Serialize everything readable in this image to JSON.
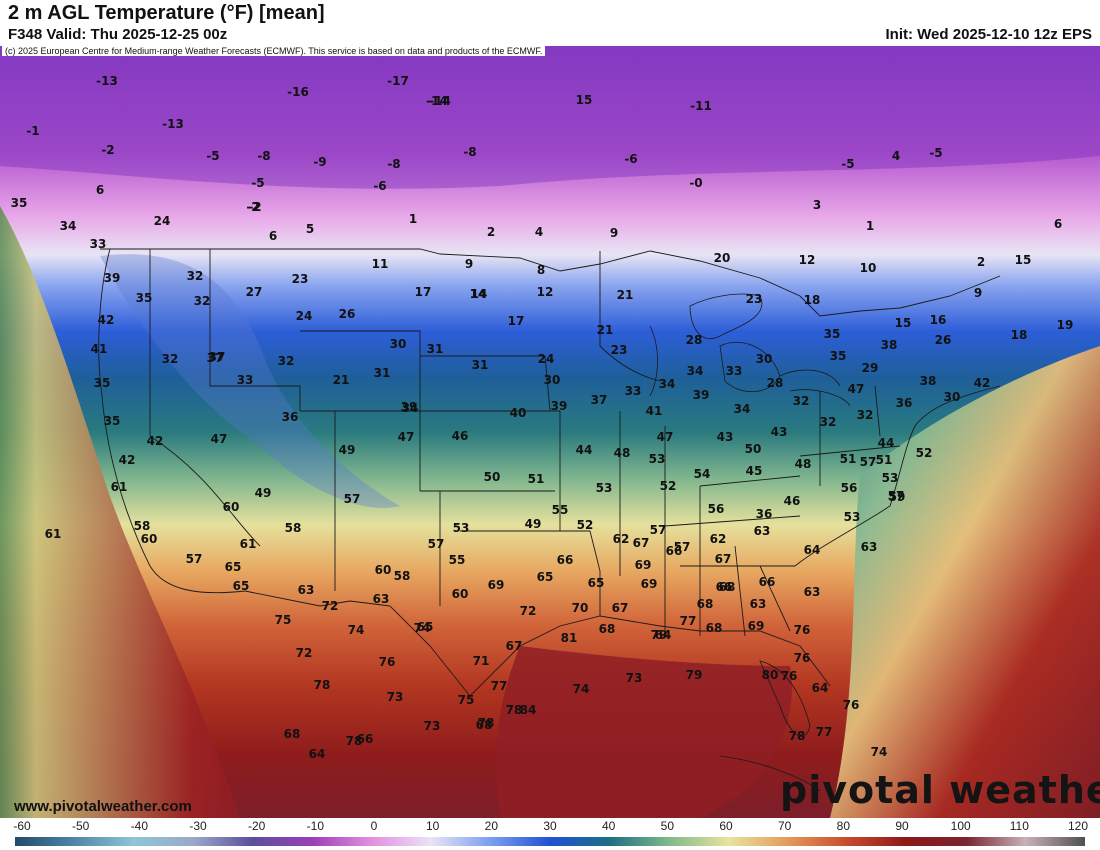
{
  "header": {
    "title": "2 m AGL Temperature (°F) [mean]",
    "valid": "F348 Valid: Thu 2025-12-25 00z",
    "init": "Init: Wed 2025-12-10 12z EPS"
  },
  "copyright": "(c) 2025 European Centre for Medium-range Weather Forecasts (ECMWF). This service is based on data and products of the ECMWF.",
  "watermark": {
    "site": "www.pivotalweather.com",
    "logo": "pivotal weather"
  },
  "colorbar": {
    "ticks": [
      "-60",
      "-50",
      "-40",
      "-30",
      "-20",
      "-10",
      "0",
      "10",
      "20",
      "30",
      "40",
      "50",
      "60",
      "70",
      "80",
      "90",
      "100",
      "110",
      "120"
    ],
    "stops": [
      "#214a6b",
      "#4f86a9",
      "#8ec6d6",
      "#9aa8c8",
      "#5b4f9c",
      "#9b3fb6",
      "#e48fe0",
      "#e9e3f7",
      "#7c9ff0",
      "#1f52d3",
      "#1d6f83",
      "#80b88a",
      "#e8e4a0",
      "#e49a5a",
      "#c84a2e",
      "#8c1818",
      "#7a2430",
      "#c9b1b8",
      "#505050"
    ]
  },
  "map_values": [
    "-13",
    "-17",
    "-16",
    "-14",
    "-14",
    "15",
    "-11",
    "-1",
    "-13",
    "-2",
    "-5",
    "-8",
    "-9",
    "-8",
    "-8",
    "-5",
    "-6",
    "-2",
    "-6",
    "-0",
    "4",
    "-5",
    "6",
    "-5",
    "24",
    "-2",
    "1",
    "2",
    "4",
    "9",
    "5",
    "6",
    "3",
    "1",
    "6",
    "35",
    "34",
    "33",
    "11",
    "9",
    "8",
    "12",
    "14",
    "20",
    "12",
    "10",
    "2",
    "15",
    "39",
    "32",
    "27",
    "23",
    "17",
    "14",
    "21",
    "23",
    "18",
    "9",
    "35",
    "32",
    "24",
    "26",
    "17",
    "21",
    "28",
    "15",
    "16",
    "42",
    "30",
    "31",
    "31",
    "24",
    "23",
    "37",
    "26",
    "18",
    "19",
    "41",
    "32",
    "37",
    "32",
    "35",
    "21",
    "31",
    "30",
    "33",
    "34",
    "34",
    "33",
    "30",
    "35",
    "29",
    "38",
    "35",
    "33",
    "34",
    "40",
    "37",
    "39",
    "28",
    "32",
    "47",
    "38",
    "42",
    "35",
    "36",
    "39",
    "39",
    "41",
    "34",
    "32",
    "32",
    "36",
    "30",
    "42",
    "47",
    "46",
    "47",
    "49",
    "47",
    "48",
    "44",
    "43",
    "50",
    "43",
    "44",
    "52",
    "42",
    "49",
    "50",
    "51",
    "53",
    "54",
    "53",
    "52",
    "45",
    "48",
    "51",
    "51",
    "53",
    "56",
    "46",
    "57",
    "59",
    "58",
    "60",
    "57",
    "55",
    "49",
    "52",
    "57",
    "56",
    "36",
    "53",
    "57",
    "61",
    "61",
    "58",
    "57",
    "53",
    "55",
    "62",
    "57",
    "62",
    "63",
    "64",
    "63",
    "60",
    "57",
    "61",
    "66",
    "67",
    "66",
    "67",
    "66",
    "66",
    "65",
    "63",
    "60",
    "58",
    "60",
    "69",
    "65",
    "65",
    "69",
    "69",
    "68",
    "68",
    "63",
    "63",
    "65",
    "72",
    "63",
    "65",
    "72",
    "70",
    "67",
    "68",
    "64",
    "77",
    "69",
    "76",
    "75",
    "74",
    "74",
    "67",
    "81",
    "79",
    "68",
    "80",
    "72",
    "76",
    "71",
    "74",
    "73",
    "79",
    "76",
    "76",
    "78",
    "73",
    "75",
    "77",
    "78",
    "84",
    "68",
    "64",
    "76",
    "77",
    "78",
    "74",
    "68",
    "64",
    "78",
    "66",
    "73",
    "78"
  ]
}
